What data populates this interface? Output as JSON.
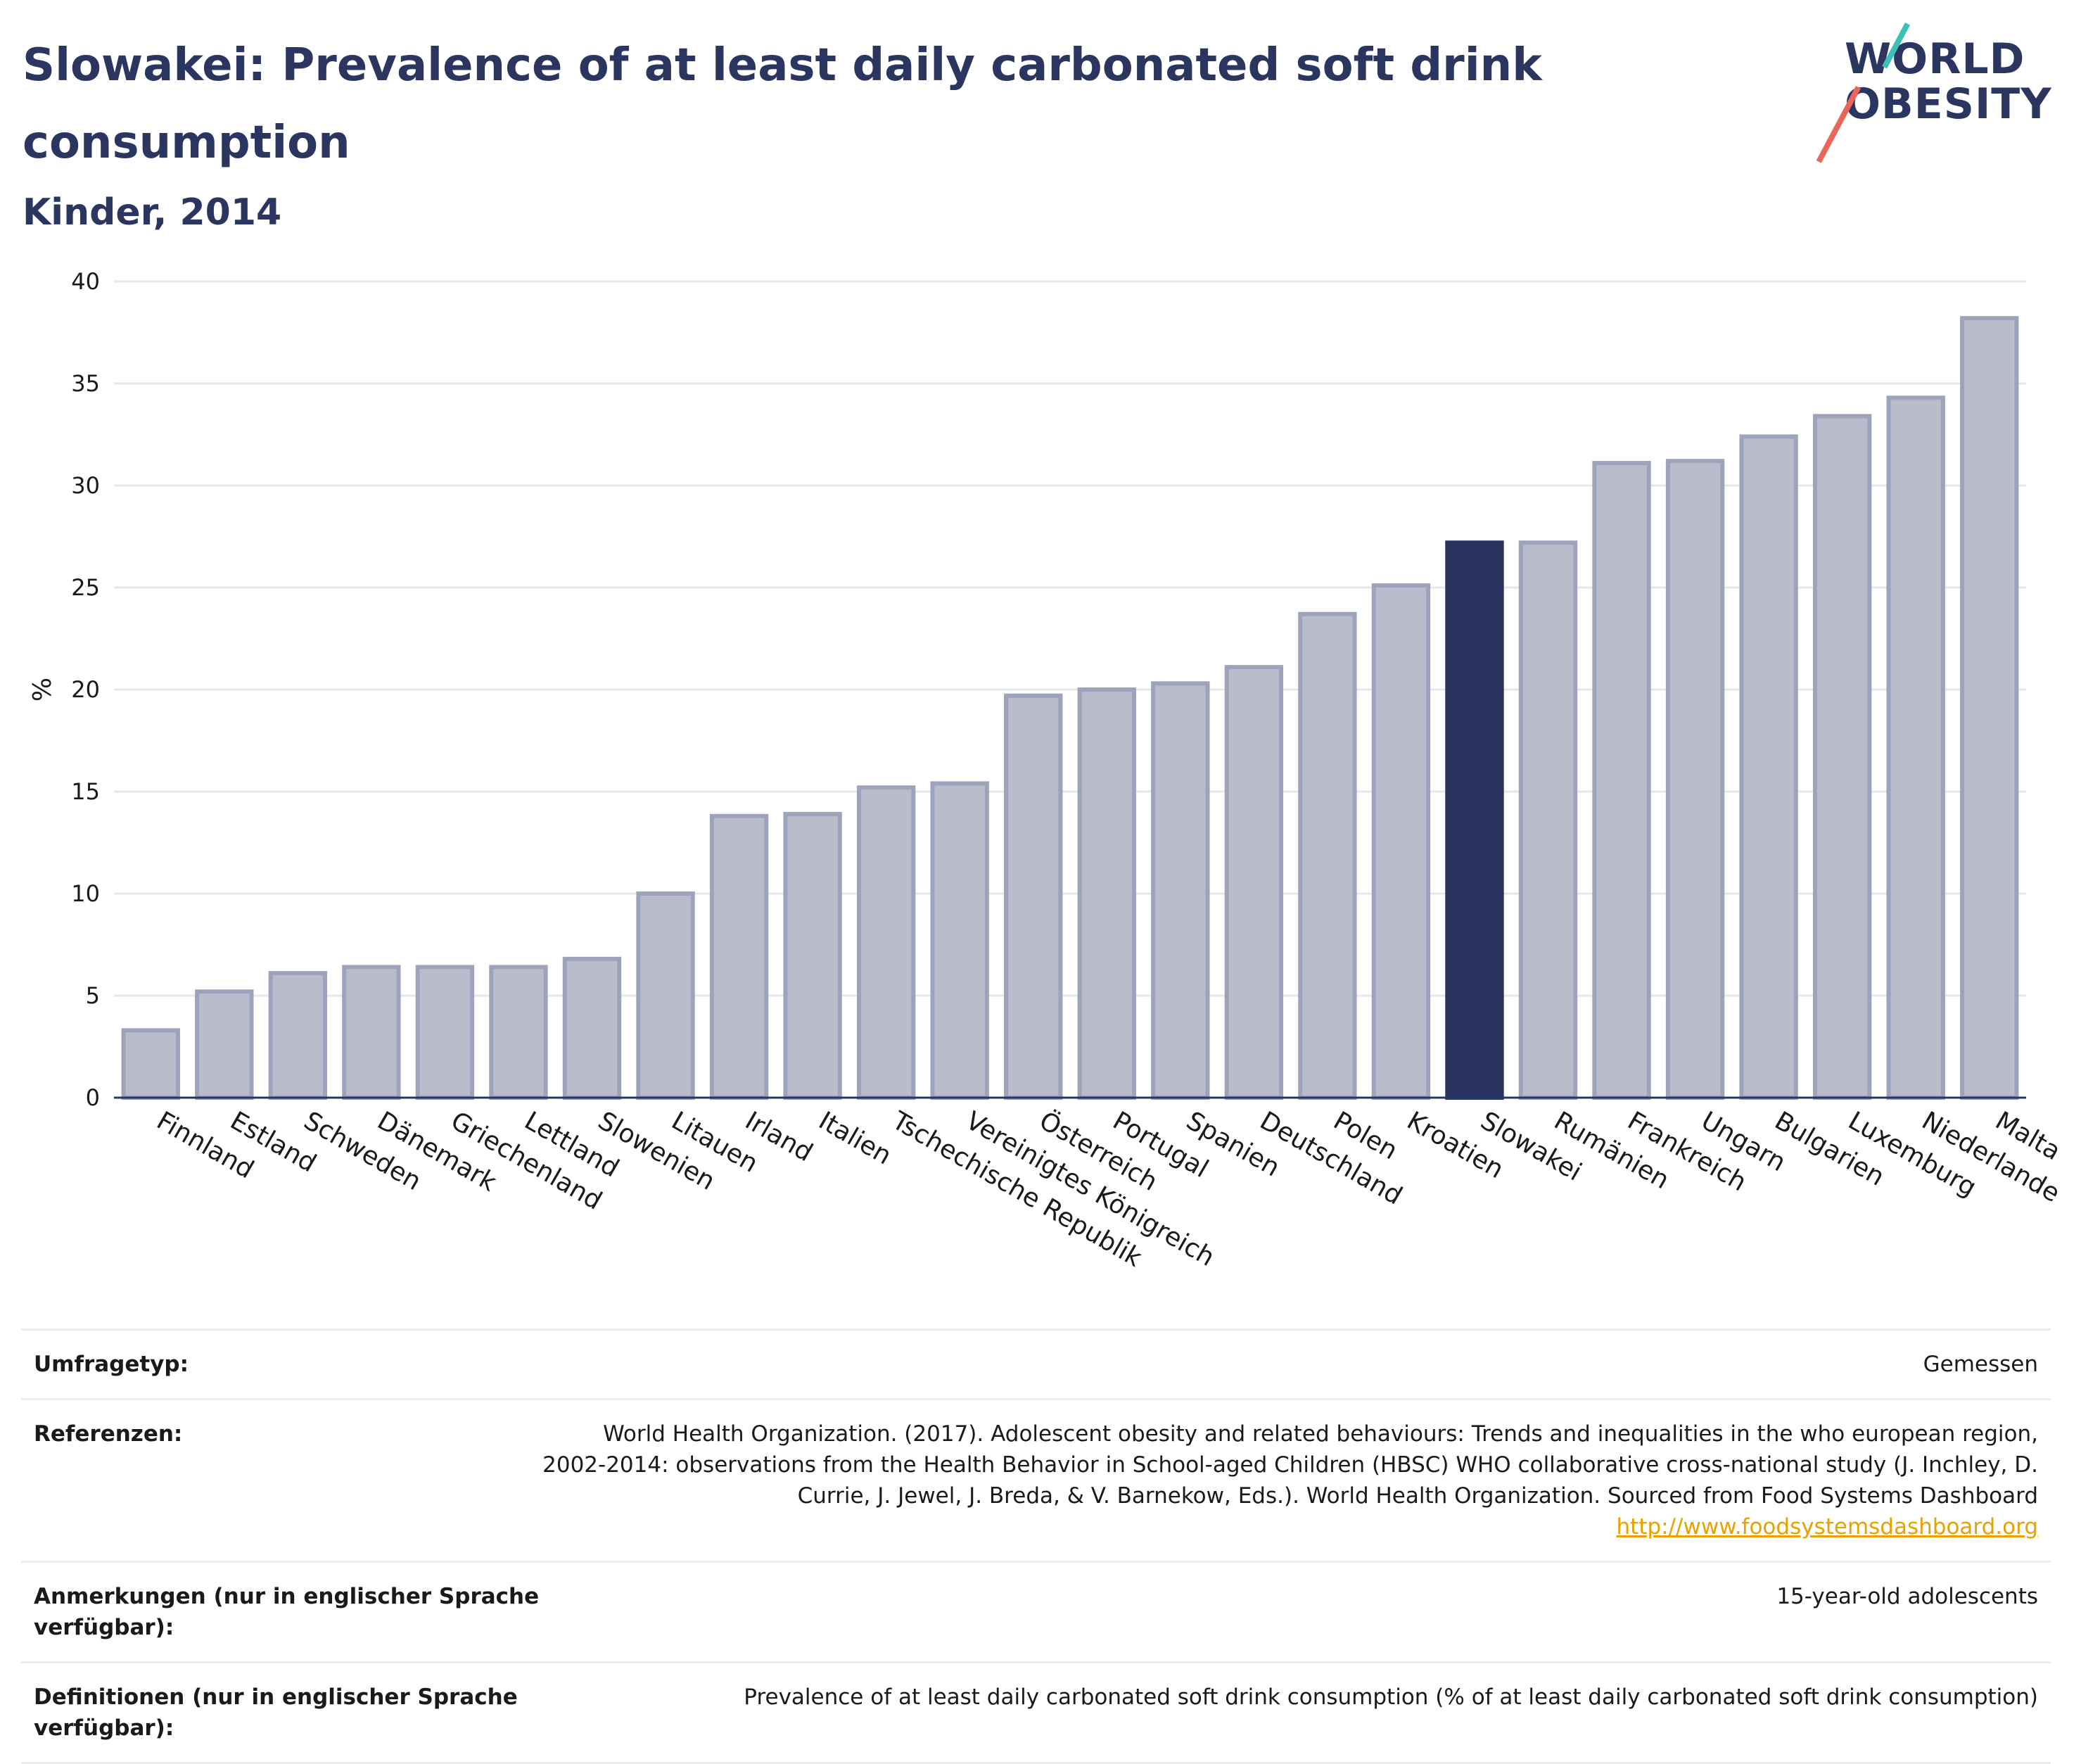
{
  "header": {
    "title": "Slowakei: Prevalence of at least daily carbonated soft drink consumption",
    "subtitle": "Kinder, 2014"
  },
  "logo": {
    "line1": "WORLD",
    "line2": "OBESITY"
  },
  "chart_data": {
    "type": "bar",
    "ylabel": "%",
    "ylim": [
      0,
      40
    ],
    "yticks": [
      0,
      5,
      10,
      15,
      20,
      25,
      30,
      35,
      40
    ],
    "grid": true,
    "highlight_category": "Slowakei",
    "colors": {
      "bar": "#b9bdcb",
      "bar_border": "#9da3bb",
      "highlight": "#29345e"
    },
    "categories": [
      "Finnland",
      "Estland",
      "Schweden",
      "Dänemark",
      "Griechenland",
      "Lettland",
      "Slowenien",
      "Litauen",
      "Irland",
      "Italien",
      "Tschechische Republik",
      "Vereinigtes Königreich",
      "Österreich",
      "Portugal",
      "Spanien",
      "Deutschland",
      "Polen",
      "Kroatien",
      "Slowakei",
      "Rumänien",
      "Frankreich",
      "Ungarn",
      "Bulgarien",
      "Luxemburg",
      "Niederlande",
      "Malta"
    ],
    "values": [
      3.3,
      5.2,
      6.1,
      6.4,
      6.4,
      6.4,
      6.8,
      10.0,
      13.8,
      13.9,
      15.2,
      15.4,
      19.7,
      20.0,
      20.3,
      21.1,
      23.7,
      25.1,
      27.2,
      27.2,
      31.1,
      31.2,
      32.4,
      33.4,
      34.3,
      38.2
    ]
  },
  "info": {
    "survey_type_label": "Umfragetyp:",
    "survey_type_value": "Gemessen",
    "references_label": "Referenzen:",
    "references_value": "World Health Organization. (2017). Adolescent obesity and related behaviours: Trends and inequalities in the who european region, 2002-2014: observations from the Health Behavior in School-aged Children (HBSC) WHO collaborative cross-national study (J. Inchley, D. Currie, J. Jewel, J. Breda, & V. Barnekow, Eds.). World Health Organization. Sourced from Food Systems Dashboard",
    "references_link": "http://www.foodsystemsdashboard.org",
    "notes_label": "Anmerkungen (nur in englischer Sprache verfügbar):",
    "notes_value": "15-year-old adolescents",
    "definitions_label": "Definitionen (nur in englischer Sprache verfügbar):",
    "definitions_value": "Prevalence of at least daily carbonated soft drink consumption (% of at least daily carbonated soft drink consumption)"
  }
}
